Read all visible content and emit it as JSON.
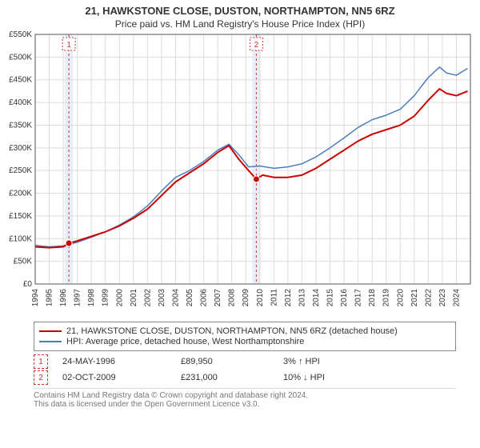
{
  "title_line1": "21, HAWKSTONE CLOSE, DUSTON, NORTHAMPTON, NN5 6RZ",
  "title_line2": "Price paid vs. HM Land Registry's House Price Index (HPI)",
  "chart": {
    "type": "line",
    "background_color": "#ffffff",
    "grid_color": "#dddddd",
    "axis_color": "#555555",
    "x_years": [
      1994,
      1995,
      1996,
      1997,
      1998,
      1999,
      2000,
      2001,
      2002,
      2003,
      2004,
      2005,
      2006,
      2007,
      2008,
      2009,
      2010,
      2011,
      2012,
      2013,
      2014,
      2015,
      2016,
      2017,
      2018,
      2019,
      2020,
      2021,
      2022,
      2023,
      2024
    ],
    "y_ticks": [
      0,
      50000,
      100000,
      150000,
      200000,
      250000,
      300000,
      350000,
      400000,
      450000,
      500000,
      550000
    ],
    "y_tick_labels": [
      "£0",
      "£50K",
      "£100K",
      "£150K",
      "£200K",
      "£250K",
      "£300K",
      "£350K",
      "£400K",
      "£450K",
      "£500K",
      "£550K"
    ],
    "xlim": [
      1994,
      2025
    ],
    "ylim": [
      0,
      550000
    ],
    "marker_shade_color": "#e8eef7",
    "marker_line_color": "#cc3333",
    "series": [
      {
        "id": "price",
        "color": "#cc0000",
        "width": 2,
        "points": [
          [
            1994.0,
            82000
          ],
          [
            1995.0,
            80000
          ],
          [
            1996.0,
            82000
          ],
          [
            1996.4,
            89950
          ],
          [
            1997.0,
            95000
          ],
          [
            1998.0,
            105000
          ],
          [
            1999.0,
            115000
          ],
          [
            2000.0,
            128000
          ],
          [
            2001.0,
            145000
          ],
          [
            2002.0,
            165000
          ],
          [
            2003.0,
            195000
          ],
          [
            2004.0,
            225000
          ],
          [
            2005.0,
            245000
          ],
          [
            2006.0,
            265000
          ],
          [
            2007.0,
            290000
          ],
          [
            2007.8,
            305000
          ],
          [
            2008.5,
            275000
          ],
          [
            2009.2,
            250000
          ],
          [
            2009.75,
            231000
          ],
          [
            2010.2,
            240000
          ],
          [
            2011.0,
            235000
          ],
          [
            2012.0,
            235000
          ],
          [
            2013.0,
            240000
          ],
          [
            2014.0,
            255000
          ],
          [
            2015.0,
            275000
          ],
          [
            2016.0,
            295000
          ],
          [
            2017.0,
            315000
          ],
          [
            2018.0,
            330000
          ],
          [
            2019.0,
            340000
          ],
          [
            2020.0,
            350000
          ],
          [
            2021.0,
            370000
          ],
          [
            2022.0,
            405000
          ],
          [
            2022.8,
            430000
          ],
          [
            2023.3,
            420000
          ],
          [
            2024.0,
            415000
          ],
          [
            2024.8,
            425000
          ]
        ]
      },
      {
        "id": "hpi",
        "color": "#4a7ebb",
        "width": 1.5,
        "points": [
          [
            1994.0,
            85000
          ],
          [
            1995.0,
            82000
          ],
          [
            1996.0,
            84000
          ],
          [
            1997.0,
            92000
          ],
          [
            1998.0,
            103000
          ],
          [
            1999.0,
            115000
          ],
          [
            2000.0,
            130000
          ],
          [
            2001.0,
            148000
          ],
          [
            2002.0,
            172000
          ],
          [
            2003.0,
            205000
          ],
          [
            2004.0,
            235000
          ],
          [
            2005.0,
            250000
          ],
          [
            2006.0,
            270000
          ],
          [
            2007.0,
            295000
          ],
          [
            2007.8,
            308000
          ],
          [
            2008.5,
            285000
          ],
          [
            2009.2,
            258000
          ],
          [
            2010.0,
            260000
          ],
          [
            2011.0,
            255000
          ],
          [
            2012.0,
            258000
          ],
          [
            2013.0,
            265000
          ],
          [
            2014.0,
            280000
          ],
          [
            2015.0,
            300000
          ],
          [
            2016.0,
            322000
          ],
          [
            2017.0,
            345000
          ],
          [
            2018.0,
            362000
          ],
          [
            2019.0,
            372000
          ],
          [
            2020.0,
            385000
          ],
          [
            2021.0,
            415000
          ],
          [
            2022.0,
            455000
          ],
          [
            2022.8,
            478000
          ],
          [
            2023.3,
            465000
          ],
          [
            2024.0,
            460000
          ],
          [
            2024.8,
            475000
          ]
        ]
      }
    ],
    "markers": [
      {
        "n": "1",
        "x": 1996.4,
        "y": 89950
      },
      {
        "n": "2",
        "x": 2009.75,
        "y": 231000
      }
    ]
  },
  "legend": {
    "series1": "21, HAWKSTONE CLOSE, DUSTON, NORTHAMPTON, NN5 6RZ (detached house)",
    "series2": "HPI: Average price, detached house, West Northamptonshire"
  },
  "sale_rows": [
    {
      "n": "1",
      "date": "24-MAY-1996",
      "price": "£89,950",
      "delta": "3% ↑ HPI"
    },
    {
      "n": "2",
      "date": "02-OCT-2009",
      "price": "£231,000",
      "delta": "10% ↓ HPI"
    }
  ],
  "footer_line1": "Contains HM Land Registry data © Crown copyright and database right 2024.",
  "footer_line2": "This data is licensed under the Open Government Licence v3.0.",
  "colors": {
    "marker_box_border": "#cc3333",
    "marker_box_text": "#cc3333",
    "footer_text": "#888888"
  }
}
